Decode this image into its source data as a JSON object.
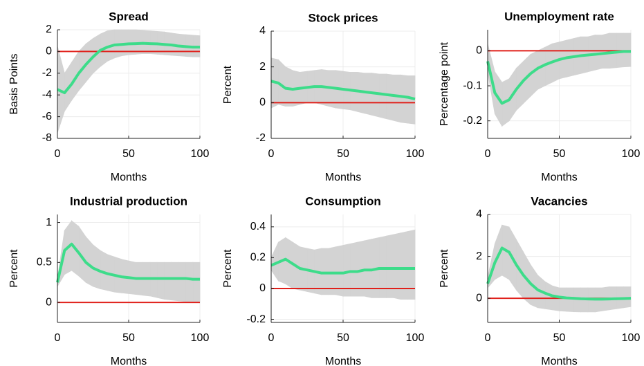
{
  "chart_data": [
    {
      "type": "band-line",
      "title": "Spread",
      "xlabel": "Months",
      "ylabel": "Basis Points",
      "x": [
        0,
        5,
        10,
        15,
        20,
        25,
        30,
        35,
        40,
        45,
        50,
        55,
        60,
        65,
        70,
        75,
        80,
        85,
        90,
        95,
        100
      ],
      "xlim": [
        0,
        100
      ],
      "xticks": [
        0,
        50,
        100
      ],
      "ylim": [
        -8,
        2
      ],
      "yticks": [
        -8,
        -6,
        -4,
        -2,
        0,
        2
      ],
      "grid": true,
      "reference_line": {
        "value": 0,
        "color": "#e0201b"
      },
      "band": {
        "color": "#d3d3d3",
        "lower": [
          -7.5,
          -5.5,
          -4.5,
          -3.6,
          -2.8,
          -2,
          -1.4,
          -0.9,
          -0.6,
          -0.4,
          -0.3,
          -0.25,
          -0.2,
          -0.2,
          -0.25,
          -0.3,
          -0.35,
          -0.4,
          -0.45,
          -0.5,
          -0.5
        ],
        "upper": [
          0.5,
          -2,
          -1,
          0,
          0.7,
          1.2,
          1.6,
          1.9,
          2,
          2,
          2,
          2,
          1.95,
          1.9,
          1.85,
          1.8,
          1.7,
          1.6,
          1.55,
          1.5,
          1.45
        ]
      },
      "series": [
        {
          "color": "#3ddc8a",
          "values": [
            -3.5,
            -3.8,
            -3,
            -2,
            -1.2,
            -0.5,
            0.1,
            0.4,
            0.6,
            0.65,
            0.7,
            0.72,
            0.75,
            0.72,
            0.7,
            0.65,
            0.6,
            0.5,
            0.45,
            0.4,
            0.4
          ]
        }
      ]
    },
    {
      "type": "band-line",
      "title": "Stock prices",
      "xlabel": "Months",
      "ylabel": "Percent",
      "x": [
        0,
        5,
        10,
        15,
        20,
        25,
        30,
        35,
        40,
        45,
        50,
        55,
        60,
        65,
        70,
        75,
        80,
        85,
        90,
        95,
        100
      ],
      "xlim": [
        0,
        100
      ],
      "xticks": [
        0,
        50,
        100
      ],
      "ylim": [
        -2,
        4
      ],
      "yticks": [
        -2,
        0,
        2,
        4
      ],
      "grid": true,
      "reference_line": {
        "value": 0,
        "color": "#e0201b"
      },
      "band": {
        "color": "#d3d3d3",
        "lower": [
          -0.3,
          -0.1,
          -0.2,
          -0.2,
          -0.1,
          0,
          0,
          -0.1,
          -0.2,
          -0.3,
          -0.35,
          -0.4,
          -0.5,
          -0.6,
          -0.7,
          -0.8,
          -0.9,
          -1,
          -1.1,
          -1.15,
          -1.2
        ],
        "upper": [
          2.5,
          2.4,
          2,
          1.8,
          1.7,
          1.75,
          1.8,
          1.85,
          1.8,
          1.8,
          1.75,
          1.7,
          1.7,
          1.65,
          1.65,
          1.6,
          1.6,
          1.55,
          1.55,
          1.5,
          1.5
        ]
      },
      "series": [
        {
          "color": "#3ddc8a",
          "values": [
            1.2,
            1.1,
            0.8,
            0.75,
            0.8,
            0.85,
            0.9,
            0.9,
            0.85,
            0.8,
            0.75,
            0.7,
            0.65,
            0.6,
            0.55,
            0.5,
            0.45,
            0.4,
            0.35,
            0.3,
            0.2
          ]
        }
      ]
    },
    {
      "type": "band-line",
      "title": "Unemployment rate",
      "xlabel": "Months",
      "ylabel": "Percentage point",
      "x": [
        0,
        5,
        10,
        15,
        20,
        25,
        30,
        35,
        40,
        45,
        50,
        55,
        60,
        65,
        70,
        75,
        80,
        85,
        90,
        95,
        100
      ],
      "xlim": [
        0,
        100
      ],
      "xticks": [
        0,
        50,
        100
      ],
      "ylim": [
        -0.25,
        0.06
      ],
      "yticks": [
        -0.2,
        -0.1,
        0
      ],
      "grid": true,
      "reference_line": {
        "value": 0,
        "color": "#e0201b"
      },
      "band": {
        "color": "#d3d3d3",
        "lower": [
          -0.06,
          -0.18,
          -0.215,
          -0.2,
          -0.17,
          -0.15,
          -0.13,
          -0.11,
          -0.1,
          -0.09,
          -0.08,
          -0.075,
          -0.07,
          -0.065,
          -0.06,
          -0.055,
          -0.05,
          -0.05,
          -0.048,
          -0.046,
          -0.045
        ],
        "upper": [
          0.02,
          -0.06,
          -0.09,
          -0.08,
          -0.05,
          -0.03,
          -0.01,
          0,
          0.01,
          0.02,
          0.025,
          0.03,
          0.035,
          0.04,
          0.04,
          0.045,
          0.045,
          0.05,
          0.05,
          0.05,
          0.05
        ]
      },
      "series": [
        {
          "color": "#3ddc8a",
          "values": [
            -0.03,
            -0.12,
            -0.15,
            -0.14,
            -0.11,
            -0.085,
            -0.065,
            -0.05,
            -0.04,
            -0.032,
            -0.025,
            -0.02,
            -0.017,
            -0.014,
            -0.012,
            -0.01,
            -0.008,
            -0.006,
            -0.004,
            -0.002,
            -0.002
          ]
        }
      ]
    },
    {
      "type": "band-line",
      "title": "Industrial production",
      "xlabel": "Months",
      "ylabel": "Percent",
      "x": [
        0,
        5,
        10,
        15,
        20,
        25,
        30,
        35,
        40,
        45,
        50,
        55,
        60,
        65,
        70,
        75,
        80,
        85,
        90,
        95,
        100
      ],
      "xlim": [
        0,
        100
      ],
      "xticks": [
        0,
        50,
        100
      ],
      "ylim": [
        -0.25,
        1.1
      ],
      "yticks": [
        0,
        0.5,
        1
      ],
      "grid": true,
      "reference_line": {
        "value": 0,
        "color": "#e0201b"
      },
      "band": {
        "color": "#d3d3d3",
        "lower": [
          0.2,
          0.35,
          0.4,
          0.33,
          0.25,
          0.2,
          0.17,
          0.15,
          0.13,
          0.12,
          0.11,
          0.1,
          0.09,
          0.08,
          0.06,
          0.04,
          0.03,
          0.02,
          0.01,
          0.01,
          0
        ],
        "upper": [
          0.3,
          0.9,
          1.02,
          0.95,
          0.82,
          0.72,
          0.65,
          0.6,
          0.57,
          0.54,
          0.52,
          0.5,
          0.5,
          0.5,
          0.5,
          0.5,
          0.5,
          0.5,
          0.5,
          0.5,
          0.5
        ]
      },
      "series": [
        {
          "color": "#3ddc8a",
          "values": [
            0.25,
            0.65,
            0.73,
            0.62,
            0.5,
            0.43,
            0.39,
            0.36,
            0.34,
            0.32,
            0.31,
            0.3,
            0.3,
            0.3,
            0.3,
            0.3,
            0.3,
            0.3,
            0.3,
            0.29,
            0.29
          ]
        }
      ]
    },
    {
      "type": "band-line",
      "title": "Consumption",
      "xlabel": "Months",
      "ylabel": "Percent",
      "x": [
        0,
        5,
        10,
        15,
        20,
        25,
        30,
        35,
        40,
        45,
        50,
        55,
        60,
        65,
        70,
        75,
        80,
        85,
        90,
        95,
        100
      ],
      "xlim": [
        0,
        100
      ],
      "xticks": [
        0,
        50,
        100
      ],
      "ylim": [
        -0.22,
        0.48
      ],
      "yticks": [
        -0.2,
        0,
        0.2,
        0.4
      ],
      "grid": true,
      "reference_line": {
        "value": 0,
        "color": "#e0201b"
      },
      "band": {
        "color": "#d3d3d3",
        "lower": [
          0.12,
          0.05,
          0.03,
          0,
          -0.01,
          -0.02,
          -0.03,
          -0.04,
          -0.04,
          -0.04,
          -0.05,
          -0.05,
          -0.05,
          -0.05,
          -0.06,
          -0.06,
          -0.06,
          -0.06,
          -0.07,
          -0.07,
          -0.07
        ],
        "upper": [
          0.2,
          0.3,
          0.33,
          0.3,
          0.27,
          0.26,
          0.25,
          0.26,
          0.26,
          0.27,
          0.28,
          0.29,
          0.3,
          0.31,
          0.32,
          0.33,
          0.34,
          0.35,
          0.36,
          0.37,
          0.38
        ]
      },
      "series": [
        {
          "color": "#3ddc8a",
          "values": [
            0.15,
            0.17,
            0.19,
            0.16,
            0.13,
            0.12,
            0.11,
            0.1,
            0.1,
            0.1,
            0.1,
            0.11,
            0.11,
            0.12,
            0.12,
            0.13,
            0.13,
            0.13,
            0.13,
            0.13,
            0.13
          ]
        }
      ]
    },
    {
      "type": "band-line",
      "title": "Vacancies",
      "xlabel": "Months",
      "ylabel": "Percent",
      "x": [
        0,
        5,
        10,
        15,
        20,
        25,
        30,
        35,
        40,
        45,
        50,
        55,
        60,
        65,
        70,
        75,
        80,
        85,
        90,
        95,
        100
      ],
      "xlim": [
        0,
        100
      ],
      "xticks": [
        0,
        50,
        100
      ],
      "ylim": [
        -1.15,
        4
      ],
      "yticks": [
        0,
        2,
        4
      ],
      "grid": true,
      "reference_line": {
        "value": 0,
        "color": "#e0201b"
      },
      "band": {
        "color": "#d3d3d3",
        "lower": [
          0.5,
          0.9,
          1.1,
          0.9,
          0.4,
          0,
          -0.3,
          -0.45,
          -0.5,
          -0.55,
          -0.6,
          -0.62,
          -0.64,
          -0.65,
          -0.65,
          -0.65,
          -0.6,
          -0.55,
          -0.5,
          -0.45,
          -0.4
        ],
        "upper": [
          1,
          2.6,
          3.5,
          3.4,
          2.8,
          2.2,
          1.6,
          1.1,
          0.8,
          0.6,
          0.5,
          0.5,
          0.5,
          0.5,
          0.5,
          0.5,
          0.5,
          0.55,
          0.55,
          0.55,
          0.55
        ]
      },
      "series": [
        {
          "color": "#3ddc8a",
          "values": [
            0.7,
            1.7,
            2.4,
            2.2,
            1.6,
            1.1,
            0.7,
            0.4,
            0.25,
            0.12,
            0.06,
            0.02,
            0,
            -0.02,
            -0.03,
            -0.04,
            -0.04,
            -0.03,
            -0.02,
            -0.01,
            0
          ]
        }
      ]
    }
  ]
}
